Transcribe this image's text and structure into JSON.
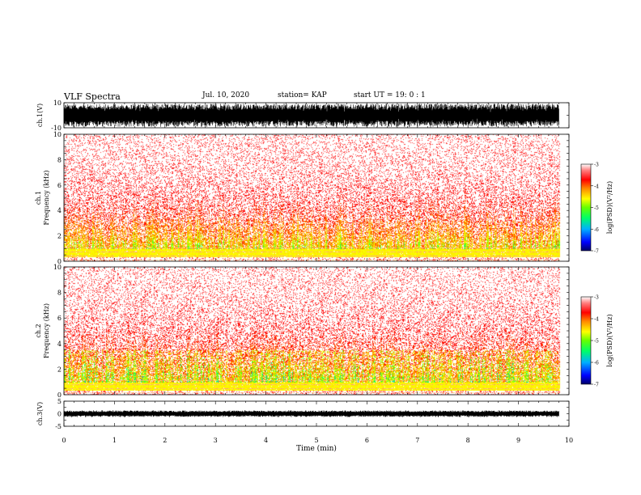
{
  "header": {
    "title": "VLF Spectra",
    "date": "Jul. 10, 2020",
    "station": "station= KAP",
    "start": "start UT =  19: 0 : 1"
  },
  "colors": {
    "waveform": "#000000",
    "colormap": [
      "#000066",
      "#0000ff",
      "#00b0ff",
      "#00ff66",
      "#66ff00",
      "#ffff00",
      "#ff8800",
      "#ff0000",
      "#ff8080",
      "#ffffff"
    ]
  },
  "chart_data": [
    {
      "type": "line",
      "name": "ch1-waveform",
      "ylabel": "ch.1(V)",
      "ylim": [
        -10,
        10
      ],
      "yticks": [
        "10",
        "-10"
      ],
      "xlim": [
        0,
        10
      ],
      "note_visible": "dense broadband waveform filling most of the range"
    },
    {
      "type": "heatmap",
      "name": "ch1-spectrogram",
      "ylabel": "ch.1\nFrequency (kHz)",
      "ylim": [
        0,
        10
      ],
      "yticks": [
        "0",
        "2",
        "4",
        "6",
        "8",
        "10"
      ],
      "xlim": [
        0,
        10
      ],
      "data_end_min": 9.8,
      "colorbar": {
        "label": "log(PSD)(V²/Hz)",
        "range": [
          -7,
          -3
        ],
        "ticks": [
          "-3",
          "-4",
          "-5",
          "-6",
          "-7"
        ]
      }
    },
    {
      "type": "heatmap",
      "name": "ch2-spectrogram",
      "ylabel": "ch.2\nFrequency (kHz)",
      "ylim": [
        0,
        10
      ],
      "yticks": [
        "0",
        "2",
        "4",
        "6",
        "8",
        "10"
      ],
      "xlim": [
        0,
        10
      ],
      "data_end_min": 9.8,
      "colorbar": {
        "label": "log(PSD)(V²/Hz)",
        "range": [
          -7,
          -3
        ],
        "ticks": [
          "-3",
          "-4",
          "-5",
          "-6",
          "-7"
        ]
      }
    },
    {
      "type": "line",
      "name": "ch3-waveform",
      "ylabel": "ch.3(V)",
      "ylim": [
        -5,
        5
      ],
      "yticks": [
        "5",
        "0",
        "-5"
      ],
      "xlim": [
        0,
        10
      ],
      "xlabel": "Time (min)",
      "xticks": [
        "0",
        "1",
        "2",
        "3",
        "4",
        "5",
        "6",
        "7",
        "8",
        "9",
        "10"
      ]
    }
  ]
}
